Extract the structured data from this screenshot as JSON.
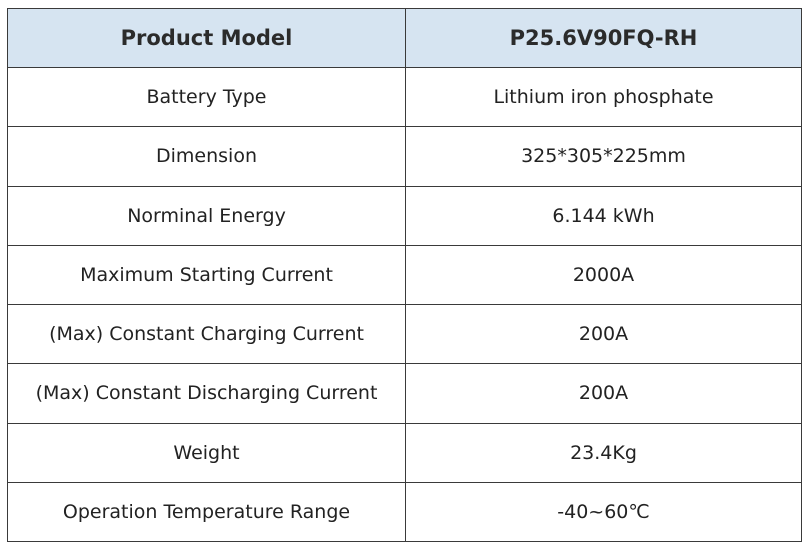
{
  "table": {
    "header": {
      "label": "Product Model",
      "value": "P25.6V90FQ-RH"
    },
    "rows": [
      {
        "label": "Battery Type",
        "value": "Lithium iron phosphate"
      },
      {
        "label": "Dimension",
        "value": "325*305*225mm"
      },
      {
        "label": "Norminal Energy",
        "value": "6.144 kWh"
      },
      {
        "label": "Maximum Starting Current",
        "value": "2000A"
      },
      {
        "label": "(Max) Constant Charging Current",
        "value": "200A"
      },
      {
        "label": "(Max) Constant Discharging Current",
        "value": "200A"
      },
      {
        "label": "Weight",
        "value": "23.4Kg"
      },
      {
        "label": "Operation Temperature Range",
        "value": "-40~60℃"
      }
    ],
    "colors": {
      "header_bg": "#d6e4f1",
      "border": "#3a3a3a",
      "text": "#222222"
    }
  }
}
